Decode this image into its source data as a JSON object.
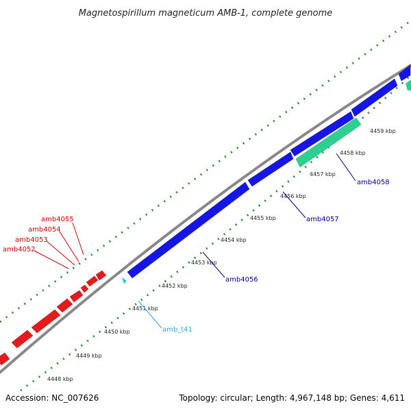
{
  "title": "Magnetospirillum magneticum AMB-1, complete genome",
  "footer": {
    "accession": "Accession: NC_007626",
    "stats": "Topology: circular; Length: 4,967,148 bp; Genes: 4,611"
  },
  "scale_ticks": [
    "4448 kbp",
    "4449 kbp",
    "4450 kbp",
    "4451 kbp",
    "4452 kbp",
    "4453 kbp",
    "4454 kbp",
    "4455 kbp",
    "4456 kbp",
    "4457 kbp",
    "4458 kbp",
    "4459 kbp"
  ],
  "gene_labels": [
    {
      "name": "amb4052",
      "color": "#cc0000"
    },
    {
      "name": "amb4053",
      "color": "#cc0000"
    },
    {
      "name": "amb4054",
      "color": "#cc0000"
    },
    {
      "name": "amb4055",
      "color": "#cc0000"
    },
    {
      "name": "amb4056",
      "color": "#00008b"
    },
    {
      "name": "amb4057",
      "color": "#00008b"
    },
    {
      "name": "amb4058",
      "color": "#00008b"
    },
    {
      "name": "amb_t41",
      "color": "#22aadd"
    }
  ],
  "colors": {
    "forward_cds": "#e41a1c",
    "reverse_cds": "#1515e6",
    "rna": "#22c0e0",
    "green_feature": "#2ed090",
    "backbone": "#888888",
    "dot_track": "#2a8a2a"
  }
}
